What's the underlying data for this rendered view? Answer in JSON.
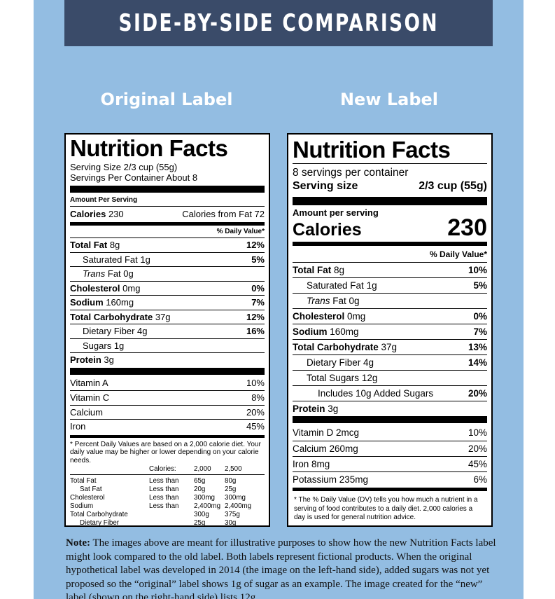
{
  "banner": {
    "title": "SIDE-BY-SIDE COMPARISON"
  },
  "columns": {
    "left_title": "Original Label",
    "right_title": "New Label"
  },
  "original": {
    "title": "Nutrition Facts",
    "serving_size": "Serving Size 2/3 cup (55g)",
    "servings_per_container": "Servings Per Container About 8",
    "amount_per_serving": "Amount Per Serving",
    "calories_label": "Calories",
    "calories_value": "230",
    "calories_from_fat": "Calories from Fat 72",
    "dv_header": "% Daily Value*",
    "nutrients": [
      {
        "name": "Total Fat",
        "amount": "8g",
        "dv": "12%"
      },
      {
        "name": "Saturated Fat",
        "amount": "1g",
        "dv": "5%"
      },
      {
        "name": "Trans",
        "amount": "Fat 0g",
        "dv": ""
      },
      {
        "name": "Cholesterol",
        "amount": "0mg",
        "dv": "0%"
      },
      {
        "name": "Sodium",
        "amount": "160mg",
        "dv": "7%"
      },
      {
        "name": "Total Carbohydrate",
        "amount": "37g",
        "dv": "12%"
      },
      {
        "name": "Dietary Fiber",
        "amount": "4g",
        "dv": "16%"
      },
      {
        "name": "Sugars",
        "amount": "1g",
        "dv": ""
      },
      {
        "name": "Protein",
        "amount": "3g",
        "dv": ""
      }
    ],
    "vitamins": [
      {
        "name": "Vitamin A",
        "dv": "10%"
      },
      {
        "name": "Vitamin C",
        "dv": "8%"
      },
      {
        "name": "Calcium",
        "dv": "20%"
      },
      {
        "name": "Iron",
        "dv": "45%"
      }
    ],
    "footnote": "* Percent Daily Values are based on a 2,000 calorie diet. Your daily value may be higher or lower depending on your calorie needs.",
    "footnote_table": {
      "header": [
        "",
        "Calories:",
        "2,000",
        "2,500"
      ],
      "rows": [
        [
          "Total Fat",
          "Less than",
          "65g",
          "80g"
        ],
        [
          "Sat Fat",
          "Less than",
          "20g",
          "25g"
        ],
        [
          "Cholesterol",
          "Less than",
          "300mg",
          "300mg"
        ],
        [
          "Sodium",
          "Less than",
          "2,400mg",
          "2,400mg"
        ],
        [
          "Total Carbohydrate",
          "",
          "300g",
          "375g"
        ],
        [
          "Dietary Fiber",
          "",
          "25g",
          "30g"
        ]
      ]
    }
  },
  "new": {
    "title": "Nutrition Facts",
    "servings_per_container": "8 servings per container",
    "serving_size_label": "Serving size",
    "serving_size_value": "2/3 cup (55g)",
    "amount_per_serving": "Amount per serving",
    "calories_label": "Calories",
    "calories_value": "230",
    "dv_header": "% Daily Value*",
    "nutrients": [
      {
        "name": "Total Fat",
        "amount": "8g",
        "dv": "10%"
      },
      {
        "name": "Saturated Fat",
        "amount": "1g",
        "dv": "5%"
      },
      {
        "name": "Trans",
        "amount": "Fat 0g",
        "dv": ""
      },
      {
        "name": "Cholesterol",
        "amount": "0mg",
        "dv": "0%"
      },
      {
        "name": "Sodium",
        "amount": "160mg",
        "dv": "7%"
      },
      {
        "name": "Total Carbohydrate",
        "amount": "37g",
        "dv": "13%"
      },
      {
        "name": "Dietary Fiber",
        "amount": "4g",
        "dv": "14%"
      },
      {
        "name": "Total Sugars",
        "amount": "12g",
        "dv": ""
      },
      {
        "name": "Includes 10g Added Sugars",
        "amount": "",
        "dv": "20%"
      },
      {
        "name": "Protein",
        "amount": "3g",
        "dv": ""
      }
    ],
    "vitamins": [
      {
        "name": "Vitamin D 2mcg",
        "dv": "10%"
      },
      {
        "name": "Calcium 260mg",
        "dv": "20%"
      },
      {
        "name": "Iron 8mg",
        "dv": "45%"
      },
      {
        "name": "Potassium 235mg",
        "dv": "6%"
      }
    ],
    "footnote": "* The % Daily Value (DV) tells you how much a nutrient in a serving of food contributes to a daily diet. 2,000 calories a day is used for general nutrition advice."
  },
  "note": {
    "label": "Note:",
    "text": " The images above are meant for illustrative purposes to show how the new Nutrition Facts label might look compared to the old label. Both labels represent fictional products. When the original hypothetical label was developed in 2014 (the image on the left-hand side), added sugars was not yet proposed so the “original” label shows 1g of sugar as an example. The image created for the “new” label (shown on the right-hand side) lists 12g"
  }
}
